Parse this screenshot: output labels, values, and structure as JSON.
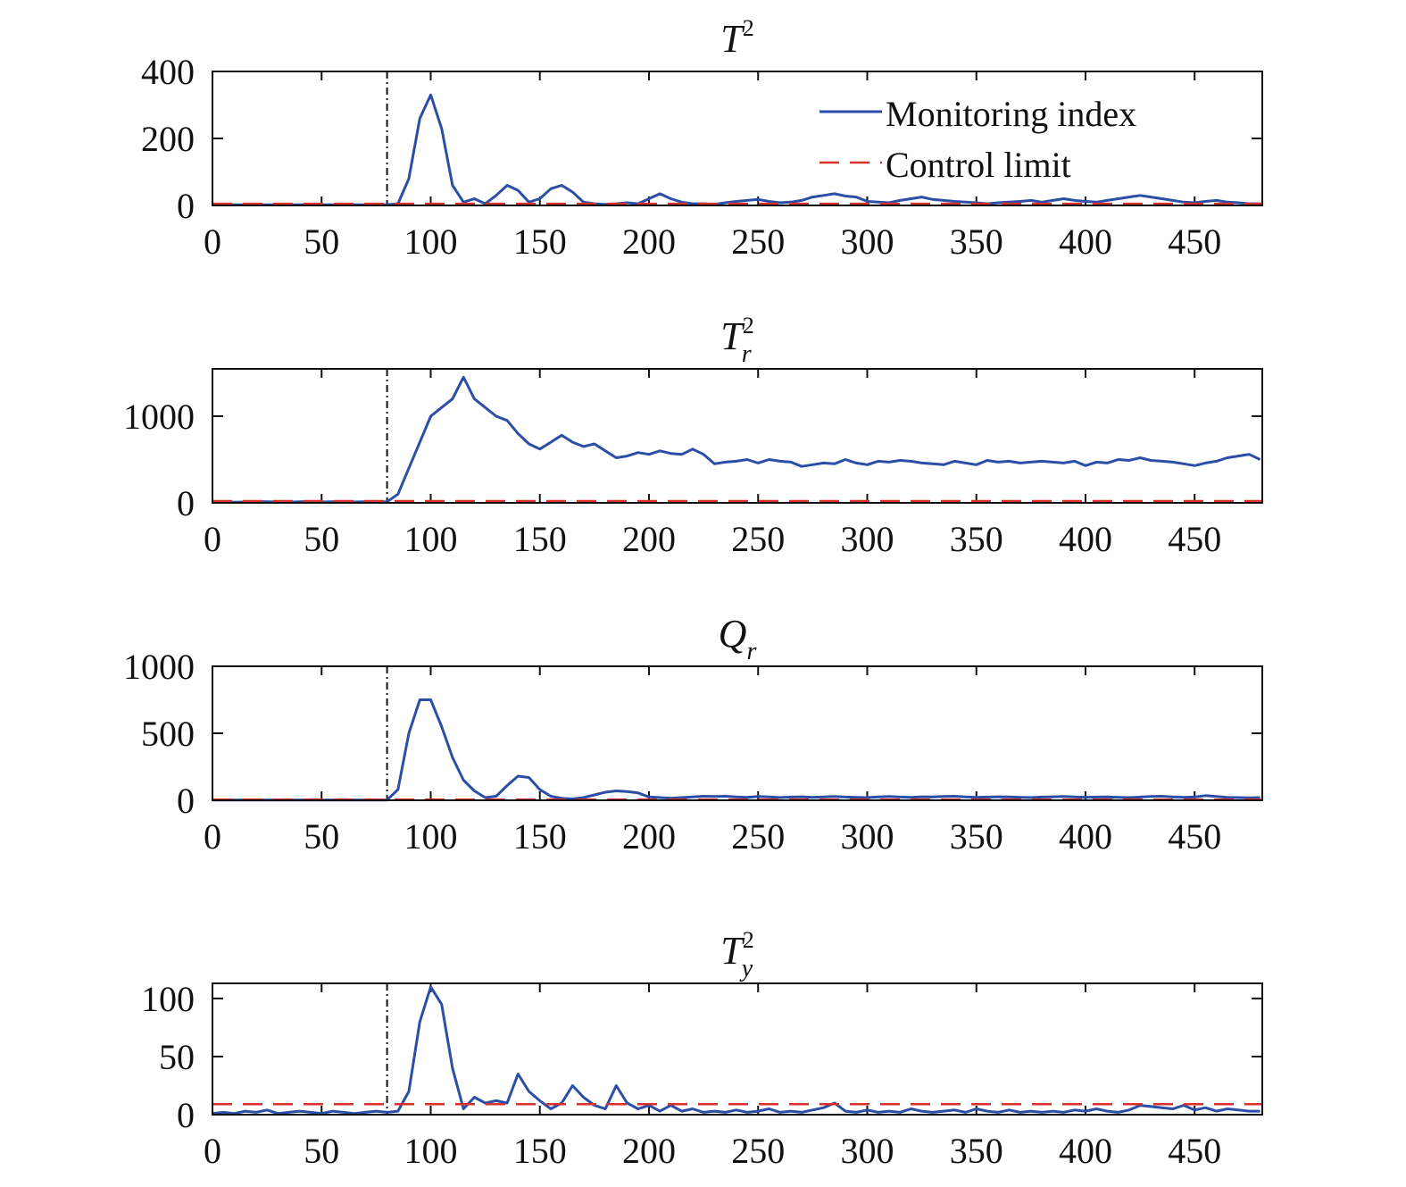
{
  "chart_data": [
    {
      "type": "line",
      "title_main": "T",
      "title_sup": "2",
      "x": [
        0,
        5,
        10,
        15,
        20,
        25,
        30,
        35,
        40,
        45,
        50,
        55,
        60,
        65,
        70,
        75,
        80,
        85,
        90,
        95,
        100,
        105,
        110,
        115,
        120,
        125,
        130,
        135,
        140,
        145,
        150,
        155,
        160,
        165,
        170,
        175,
        180,
        185,
        190,
        195,
        200,
        205,
        210,
        215,
        220,
        225,
        230,
        235,
        240,
        245,
        250,
        255,
        260,
        265,
        270,
        275,
        280,
        285,
        290,
        295,
        300,
        305,
        310,
        315,
        320,
        325,
        330,
        335,
        340,
        345,
        350,
        355,
        360,
        365,
        370,
        375,
        380,
        385,
        390,
        395,
        400,
        405,
        410,
        415,
        420,
        425,
        430,
        435,
        440,
        445,
        450,
        455,
        460,
        465,
        470,
        475,
        480
      ],
      "values": [
        2,
        2,
        2,
        2,
        2,
        2,
        2,
        2,
        2,
        2,
        2,
        2,
        2,
        2,
        2,
        2,
        2,
        5,
        80,
        260,
        330,
        230,
        60,
        10,
        20,
        5,
        30,
        60,
        45,
        10,
        20,
        50,
        60,
        40,
        10,
        5,
        3,
        5,
        8,
        5,
        20,
        35,
        20,
        10,
        5,
        5,
        3,
        8,
        12,
        15,
        18,
        12,
        8,
        10,
        15,
        25,
        30,
        35,
        28,
        25,
        12,
        10,
        8,
        15,
        20,
        25,
        18,
        15,
        12,
        10,
        8,
        5,
        8,
        10,
        12,
        15,
        10,
        15,
        20,
        15,
        12,
        10,
        15,
        20,
        25,
        30,
        25,
        20,
        15,
        10,
        8,
        12,
        15,
        10,
        8,
        5,
        5
      ],
      "color": "#2b4ea6",
      "limit": 5,
      "limit_color": "#d9302c",
      "fault_x": 80,
      "legend": [
        {
          "name": "Monitoring index"
        },
        {
          "name": "Control limit"
        }
      ],
      "xlim": [
        0,
        481
      ],
      "xticks": [
        0,
        50,
        100,
        150,
        200,
        250,
        300,
        350,
        400,
        450
      ],
      "ylim": [
        0,
        400
      ],
      "yticks": [
        0,
        200,
        400
      ]
    },
    {
      "type": "line",
      "title_main": "T",
      "title_sup": "2",
      "title_sub": "r",
      "x": [
        0,
        5,
        10,
        15,
        20,
        25,
        30,
        35,
        40,
        45,
        50,
        55,
        60,
        65,
        70,
        75,
        80,
        85,
        90,
        95,
        100,
        105,
        110,
        115,
        120,
        125,
        130,
        135,
        140,
        145,
        150,
        155,
        160,
        165,
        170,
        175,
        180,
        185,
        190,
        195,
        200,
        205,
        210,
        215,
        220,
        225,
        230,
        235,
        240,
        245,
        250,
        255,
        260,
        265,
        270,
        275,
        280,
        285,
        290,
        295,
        300,
        305,
        310,
        315,
        320,
        325,
        330,
        335,
        340,
        345,
        350,
        355,
        360,
        365,
        370,
        375,
        380,
        385,
        390,
        395,
        400,
        405,
        410,
        415,
        420,
        425,
        430,
        435,
        440,
        445,
        450,
        455,
        460,
        465,
        470,
        475,
        480
      ],
      "values": [
        10,
        12,
        8,
        10,
        15,
        12,
        10,
        8,
        12,
        15,
        10,
        12,
        15,
        10,
        12,
        10,
        12,
        100,
        400,
        700,
        1000,
        1100,
        1200,
        1450,
        1200,
        1100,
        1000,
        950,
        800,
        680,
        620,
        700,
        780,
        700,
        650,
        680,
        600,
        520,
        540,
        580,
        560,
        600,
        570,
        560,
        620,
        560,
        450,
        470,
        480,
        500,
        460,
        500,
        480,
        470,
        420,
        440,
        460,
        450,
        500,
        460,
        440,
        480,
        470,
        490,
        480,
        460,
        450,
        440,
        480,
        460,
        440,
        490,
        470,
        480,
        460,
        470,
        480,
        470,
        460,
        480,
        430,
        470,
        460,
        500,
        490,
        520,
        490,
        480,
        470,
        450,
        430,
        460,
        480,
        520,
        540,
        560,
        500
      ],
      "color": "#2b4ea6",
      "limit": 20,
      "limit_color": "#d9302c",
      "fault_x": 80,
      "xlim": [
        0,
        481
      ],
      "xticks": [
        0,
        50,
        100,
        150,
        200,
        250,
        300,
        350,
        400,
        450
      ],
      "ylim": [
        0,
        1546
      ],
      "yticks": [
        0,
        1000
      ]
    },
    {
      "type": "line",
      "title_main": "Q",
      "title_sub": "r",
      "x": [
        0,
        5,
        10,
        15,
        20,
        25,
        30,
        35,
        40,
        45,
        50,
        55,
        60,
        65,
        70,
        75,
        80,
        85,
        90,
        95,
        100,
        105,
        110,
        115,
        120,
        125,
        130,
        135,
        140,
        145,
        150,
        155,
        160,
        165,
        170,
        175,
        180,
        185,
        190,
        195,
        200,
        205,
        210,
        215,
        220,
        225,
        230,
        235,
        240,
        245,
        250,
        255,
        260,
        265,
        270,
        275,
        280,
        285,
        290,
        295,
        300,
        305,
        310,
        315,
        320,
        325,
        330,
        335,
        340,
        345,
        350,
        355,
        360,
        365,
        370,
        375,
        380,
        385,
        390,
        395,
        400,
        405,
        410,
        415,
        420,
        425,
        430,
        435,
        440,
        445,
        450,
        455,
        460,
        465,
        470,
        475,
        480
      ],
      "values": [
        2,
        2,
        2,
        2,
        2,
        2,
        2,
        2,
        2,
        2,
        2,
        2,
        2,
        2,
        2,
        2,
        2,
        80,
        500,
        750,
        750,
        550,
        320,
        150,
        70,
        20,
        30,
        110,
        180,
        170,
        80,
        30,
        15,
        10,
        20,
        40,
        60,
        70,
        65,
        55,
        25,
        20,
        15,
        20,
        25,
        30,
        28,
        30,
        25,
        22,
        28,
        25,
        20,
        24,
        26,
        22,
        25,
        28,
        24,
        22,
        20,
        25,
        28,
        24,
        22,
        26,
        25,
        28,
        30,
        25,
        22,
        24,
        26,
        25,
        22,
        20,
        24,
        26,
        28,
        25,
        22,
        24,
        25,
        22,
        20,
        24,
        28,
        30,
        25,
        22,
        24,
        35,
        28,
        22,
        20,
        18,
        20
      ],
      "color": "#2b4ea6",
      "limit": 5,
      "limit_color": "#d9302c",
      "fault_x": 80,
      "xlim": [
        0,
        481
      ],
      "xticks": [
        0,
        50,
        100,
        150,
        200,
        250,
        300,
        350,
        400,
        450
      ],
      "ylim": [
        0,
        1000
      ],
      "yticks": [
        0,
        500,
        1000
      ]
    },
    {
      "type": "line",
      "title_main": "T",
      "title_sup": "2",
      "title_sub": "y",
      "x": [
        0,
        5,
        10,
        15,
        20,
        25,
        30,
        35,
        40,
        45,
        50,
        55,
        60,
        65,
        70,
        75,
        80,
        85,
        90,
        95,
        100,
        105,
        110,
        115,
        120,
        125,
        130,
        135,
        140,
        145,
        150,
        155,
        160,
        165,
        170,
        175,
        180,
        185,
        190,
        195,
        200,
        205,
        210,
        215,
        220,
        225,
        230,
        235,
        240,
        245,
        250,
        255,
        260,
        265,
        270,
        275,
        280,
        285,
        290,
        295,
        300,
        305,
        310,
        315,
        320,
        325,
        330,
        335,
        340,
        345,
        350,
        355,
        360,
        365,
        370,
        375,
        380,
        385,
        390,
        395,
        400,
        405,
        410,
        415,
        420,
        425,
        430,
        435,
        440,
        445,
        450,
        455,
        460,
        465,
        470,
        475,
        480
      ],
      "values": [
        1,
        2,
        1,
        3,
        2,
        4,
        1,
        2,
        3,
        2,
        1,
        3,
        2,
        1,
        2,
        3,
        2,
        3,
        20,
        80,
        110,
        95,
        40,
        5,
        15,
        10,
        12,
        10,
        35,
        20,
        12,
        5,
        10,
        25,
        15,
        8,
        5,
        25,
        10,
        5,
        8,
        3,
        8,
        3,
        5,
        2,
        3,
        2,
        4,
        2,
        3,
        5,
        2,
        3,
        2,
        4,
        6,
        10,
        3,
        2,
        4,
        2,
        3,
        2,
        5,
        3,
        2,
        3,
        4,
        2,
        5,
        3,
        2,
        4,
        2,
        3,
        2,
        3,
        2,
        4,
        3,
        5,
        3,
        2,
        4,
        8,
        7,
        6,
        5,
        8,
        4,
        6,
        3,
        5,
        4,
        3,
        3
      ],
      "color": "#2b4ea6",
      "limit": 9,
      "limit_color": "#d9302c",
      "fault_x": 80,
      "xlim": [
        0,
        481
      ],
      "xticks": [
        0,
        50,
        100,
        150,
        200,
        250,
        300,
        350,
        400,
        450
      ],
      "ylim": [
        0,
        113
      ],
      "yticks": [
        0,
        50,
        100
      ]
    }
  ]
}
